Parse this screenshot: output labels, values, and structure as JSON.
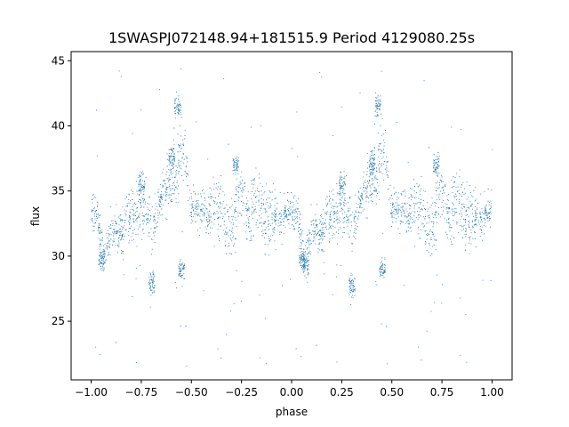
{
  "chart_data": {
    "type": "scatter",
    "title": "1SWASPJ072148.94+181515.9 Period 4129080.25s",
    "xlabel": "phase",
    "ylabel": "flux",
    "xlim": [
      -1.1,
      1.1
    ],
    "ylim": [
      20.5,
      45.7
    ],
    "x_ticks": [
      -1.0,
      -0.75,
      -0.5,
      -0.25,
      0.0,
      0.25,
      0.5,
      0.75,
      1.0
    ],
    "x_tick_labels": [
      "−1.00",
      "−0.75",
      "−0.50",
      "−0.25",
      "0.00",
      "0.25",
      "0.50",
      "0.75",
      "1.00"
    ],
    "y_ticks": [
      25,
      30,
      35,
      40,
      45
    ],
    "y_tick_labels": [
      "25",
      "30",
      "35",
      "40",
      "45"
    ],
    "grid": false,
    "legend": "none",
    "point_color": "#1f77b4",
    "phase_profile": {
      "phase": [
        0.0,
        0.03,
        0.06,
        0.1,
        0.14,
        0.18,
        0.22,
        0.26,
        0.3,
        0.34,
        0.38,
        0.42,
        0.46,
        0.5,
        0.54,
        0.58,
        0.62,
        0.66,
        0.7,
        0.74,
        0.78,
        0.82,
        0.86,
        0.9,
        0.94,
        0.97
      ],
      "flux_median": [
        33.5,
        33.2,
        30.0,
        32.0,
        31.5,
        33.5,
        33.0,
        33.8,
        32.0,
        34.5,
        35.5,
        36.5,
        38.0,
        33.5,
        33.8,
        33.2,
        34.0,
        33.0,
        32.0,
        35.5,
        33.0,
        34.5,
        33.0,
        33.5,
        32.5,
        33.5
      ],
      "flux_spread": [
        1.5,
        2.0,
        1.5,
        2.0,
        2.2,
        2.5,
        3.0,
        2.5,
        2.5,
        2.0,
        2.5,
        3.5,
        3.5,
        1.5,
        2.0,
        2.0,
        3.0,
        3.0,
        2.5,
        3.0,
        3.0,
        3.5,
        3.0,
        2.5,
        2.5,
        1.5
      ]
    },
    "dense_clusters": [
      {
        "phase": -0.95,
        "flux": 29.8
      },
      {
        "phase": 0.05,
        "flux": 29.8
      },
      {
        "phase": 0.07,
        "flux": 29.3
      },
      {
        "phase": -0.57,
        "flux": 41.5
      },
      {
        "phase": 0.43,
        "flux": 41.5
      },
      {
        "phase": -0.6,
        "flux": 37.5
      },
      {
        "phase": 0.4,
        "flux": 37.0
      },
      {
        "phase": -0.75,
        "flux": 35.5
      },
      {
        "phase": 0.25,
        "flux": 35.5
      },
      {
        "phase": -0.28,
        "flux": 37.0
      },
      {
        "phase": 0.72,
        "flux": 37.0
      },
      {
        "phase": -0.7,
        "flux": 28.0
      },
      {
        "phase": 0.3,
        "flux": 27.8
      },
      {
        "phase": -0.55,
        "flux": 29.0
      },
      {
        "phase": 0.45,
        "flux": 29.0
      }
    ]
  }
}
